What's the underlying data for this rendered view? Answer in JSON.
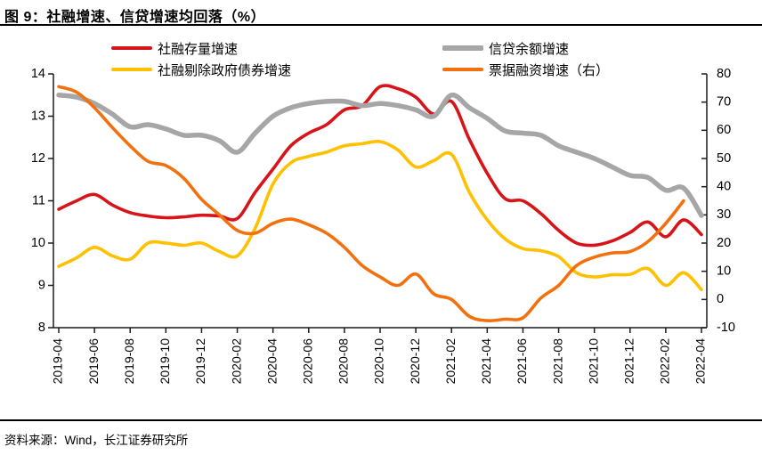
{
  "title": "图 9：社融增速、信贷增速均回落（%）",
  "source": "资料来源：Wind，长江证券研究所",
  "colors": {
    "red": "#D7141A",
    "yellow": "#FFC000",
    "gray": "#A6A6A6",
    "orange": "#F3700E",
    "axis": "#1b1b1b"
  },
  "legend": {
    "items": [
      {
        "label": "社融存量增速",
        "color_key": "red",
        "thickness": 4
      },
      {
        "label": "信贷余额增速",
        "color_key": "gray",
        "thickness": 6
      },
      {
        "label": "社融剔除政府债券增速",
        "color_key": "yellow",
        "thickness": 4
      },
      {
        "label": "票据融资增速（右）",
        "color_key": "orange",
        "thickness": 4
      }
    ]
  },
  "chart_data": {
    "type": "line",
    "title": "社融增速、信贷增速均回落（%）",
    "x": [
      "2019-04",
      "2019-05",
      "2019-06",
      "2019-07",
      "2019-08",
      "2019-09",
      "2019-10",
      "2019-11",
      "2019-12",
      "2020-01",
      "2020-02",
      "2020-03",
      "2020-04",
      "2020-05",
      "2020-06",
      "2020-07",
      "2020-08",
      "2020-09",
      "2020-10",
      "2020-11",
      "2020-12",
      "2021-01",
      "2021-02",
      "2021-03",
      "2021-04",
      "2021-05",
      "2021-06",
      "2021-07",
      "2021-08",
      "2021-09",
      "2021-10",
      "2021-11",
      "2021-12",
      "2022-01",
      "2022-02",
      "2022-03",
      "2022-04"
    ],
    "x_tick_labels": [
      "2019-04",
      "2019-06",
      "2019-08",
      "2019-10",
      "2019-12",
      "2020-02",
      "2020-04",
      "2020-06",
      "2020-08",
      "2020-10",
      "2020-12",
      "2021-02",
      "2021-04",
      "2021-06",
      "2021-08",
      "2021-10",
      "2021-12",
      "2022-02",
      "2022-04"
    ],
    "left_axis": {
      "min": 8,
      "max": 14,
      "ticks": [
        14,
        13,
        12,
        11,
        10,
        9,
        8
      ]
    },
    "right_axis": {
      "min": -10,
      "max": 80,
      "ticks": [
        80,
        70,
        60,
        50,
        40,
        30,
        20,
        10,
        0,
        -10
      ]
    },
    "grid": false,
    "legend_position": "top",
    "series": [
      {
        "name": "社融存量增速",
        "axis": "left",
        "color_key": "red",
        "width": 3.6,
        "values": [
          10.8,
          11.0,
          11.15,
          10.9,
          10.72,
          10.64,
          10.6,
          10.62,
          10.66,
          10.64,
          10.58,
          11.2,
          11.75,
          12.3,
          12.6,
          12.8,
          13.15,
          13.25,
          13.7,
          13.65,
          13.45,
          13.05,
          13.35,
          12.45,
          11.65,
          11.05,
          11.0,
          10.7,
          10.3,
          10.0,
          9.95,
          10.05,
          10.25,
          10.5,
          10.15,
          10.55,
          10.2
        ]
      },
      {
        "name": "信贷余额增速",
        "axis": "left",
        "color_key": "gray",
        "width": 5.5,
        "values": [
          13.5,
          13.45,
          13.3,
          13.05,
          12.75,
          12.8,
          12.7,
          12.55,
          12.55,
          12.42,
          12.15,
          12.6,
          13.0,
          13.2,
          13.3,
          13.35,
          13.35,
          13.25,
          13.3,
          13.25,
          13.15,
          13.0,
          13.5,
          13.2,
          12.95,
          12.65,
          12.6,
          12.55,
          12.3,
          12.15,
          12.0,
          11.8,
          11.6,
          11.55,
          11.25,
          11.3,
          10.65
        ]
      },
      {
        "name": "社融剔除政府债券增速",
        "axis": "left",
        "color_key": "yellow",
        "width": 3.6,
        "values": [
          9.45,
          9.65,
          9.9,
          9.7,
          9.62,
          10.0,
          10.0,
          9.95,
          10.0,
          9.8,
          9.7,
          10.35,
          11.4,
          11.9,
          12.05,
          12.15,
          12.3,
          12.35,
          12.4,
          12.2,
          11.8,
          11.95,
          12.1,
          11.2,
          10.55,
          10.1,
          9.87,
          9.82,
          9.68,
          9.3,
          9.2,
          9.25,
          9.26,
          9.4,
          9.0,
          9.3,
          8.9
        ]
      },
      {
        "name": "票据融资增速（右）",
        "axis": "right",
        "color_key": "orange",
        "width": 3.6,
        "values": [
          75.5,
          73.5,
          68,
          61,
          54.5,
          49,
          47.5,
          43,
          35.5,
          30,
          24.5,
          23.5,
          27,
          28.5,
          26.5,
          23.5,
          18.5,
          12,
          8,
          5,
          9,
          2,
          0,
          -6,
          -7.5,
          -7,
          -6.5,
          0.5,
          5,
          12,
          15,
          16.5,
          17,
          20.5,
          27,
          35,
          null
        ]
      }
    ]
  }
}
